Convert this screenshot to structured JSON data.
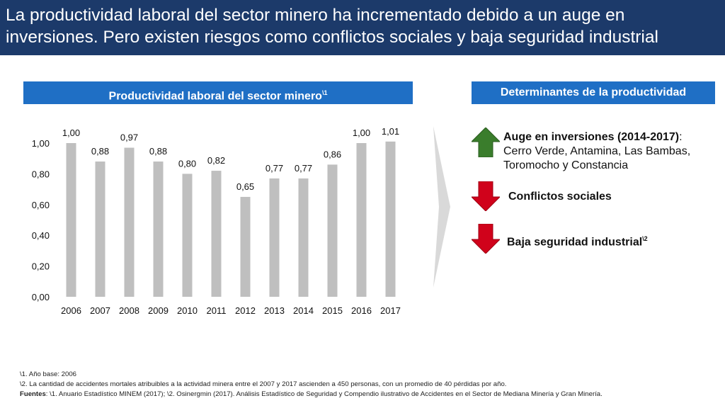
{
  "title": "La productividad laboral del sector minero ha incrementado debido a un auge en inversiones. Pero existen riesgos como conflictos sociales y baja seguridad industrial",
  "left_header": {
    "label": "Productividad laboral del sector minero",
    "sup": "\\1"
  },
  "right_header": {
    "label": "Determinantes de la productividad"
  },
  "chart_data": {
    "type": "bar",
    "categories": [
      "2006",
      "2007",
      "2008",
      "2009",
      "2010",
      "2011",
      "2012",
      "2013",
      "2014",
      "2015",
      "2016",
      "2017"
    ],
    "values": [
      1.0,
      0.88,
      0.97,
      0.88,
      0.8,
      0.82,
      0.65,
      0.77,
      0.77,
      0.86,
      1.0,
      1.01
    ],
    "value_labels": [
      "1,00",
      "0,88",
      "0,97",
      "0,88",
      "0,80",
      "0,82",
      "0,65",
      "0,77",
      "0,77",
      "0,86",
      "1,00",
      "1,01"
    ],
    "yticks": [
      "0,00",
      "0,20",
      "0,40",
      "0,60",
      "0,80",
      "1,00"
    ],
    "ylim": [
      0,
      1.0
    ],
    "bar_color": "#bfbfbf",
    "grid": false,
    "legend": "none"
  },
  "determinants": [
    {
      "icon": "arrow-up-icon",
      "color": "#3a7d2c",
      "bold": "Auge en inversiones (2014-2017)",
      "rest": ":",
      "detail": "Cerro Verde, Antamina, Las Bambas, Toromocho y Constancia"
    },
    {
      "icon": "arrow-down-icon",
      "color": "#d0021b",
      "bold": "Conflictos sociales",
      "rest": "",
      "detail": ""
    },
    {
      "icon": "arrow-down-icon",
      "color": "#d0021b",
      "bold": "Baja seguridad industrial",
      "sup": "\\2",
      "detail": ""
    }
  ],
  "notes": {
    "note1": "\\1. Año base: 2006",
    "note2": "\\2. La cantidad de accidentes mortales atribuibles a la actividad minera entre el 2007 y 2017 ascienden a 450 personas, con un promedio de 40 pérdidas por año.",
    "sources_label": "Fuentes",
    "sources_text": ": \\1. Anuario Estadístico MINEM (2017); \\2. Osinergmin (2017). Análisis Estadístico de Seguridad y Compendio ilustrativo de Accidentes en el Sector de Mediana Minería y Gran Minería."
  }
}
